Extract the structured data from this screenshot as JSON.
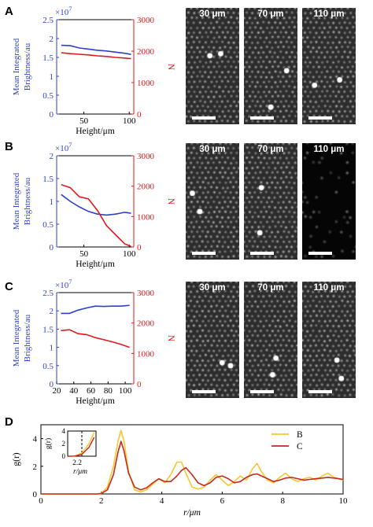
{
  "panels": [
    {
      "letter": "A"
    },
    {
      "letter": "B"
    },
    {
      "letter": "C"
    },
    {
      "letter": "D"
    }
  ],
  "colors": {
    "brightness": "#2f3fcb",
    "count": "#e0191f",
    "curve_B": "#f6c72e",
    "curve_C": "#c52a1f"
  },
  "micrographs": {
    "labels": [
      "30 μm",
      "70 μm",
      "110 μm"
    ],
    "rows": [
      {
        "panel": "A",
        "dim": [
          false,
          false,
          false
        ]
      },
      {
        "panel": "B",
        "dim": [
          false,
          false,
          true
        ]
      },
      {
        "panel": "C",
        "dim": [
          false,
          false,
          false
        ]
      }
    ]
  },
  "chart_data": [
    {
      "panel": "A",
      "type": "line",
      "xlabel": "Height/μm",
      "ylabel_left": "Mean Integrated Brightness/au",
      "ylabel_right": "N",
      "left_multiplier": "×10^7",
      "xlim": [
        20,
        105
      ],
      "x_ticks": [
        50,
        100
      ],
      "left_ylim": [
        0,
        2.5
      ],
      "left_ticks": [
        0,
        0.5,
        1,
        1.5,
        2,
        2.5
      ],
      "right_ylim": [
        0,
        3000
      ],
      "right_ticks": [
        0,
        1000,
        2000,
        3000
      ],
      "series": [
        {
          "axis": "left",
          "x": [
            25,
            35,
            45,
            55,
            65,
            75,
            85,
            95,
            102
          ],
          "y": [
            1.82,
            1.81,
            1.75,
            1.72,
            1.69,
            1.67,
            1.64,
            1.61,
            1.58
          ]
        },
        {
          "axis": "right",
          "x": [
            25,
            35,
            45,
            55,
            65,
            75,
            85,
            95,
            102
          ],
          "y": [
            1950,
            1920,
            1900,
            1880,
            1850,
            1830,
            1800,
            1780,
            1760
          ]
        }
      ]
    },
    {
      "panel": "B",
      "type": "line",
      "xlabel": "Height/μm",
      "ylabel_left": "Mean Integrated Brightness/au",
      "ylabel_right": "N",
      "left_multiplier": "×10^7",
      "xlim": [
        20,
        105
      ],
      "x_ticks": [
        50,
        100
      ],
      "left_ylim": [
        0,
        2
      ],
      "left_ticks": [
        0,
        0.5,
        1,
        1.5,
        2
      ],
      "right_ylim": [
        0,
        3000
      ],
      "right_ticks": [
        0,
        1000,
        2000,
        3000
      ],
      "series": [
        {
          "axis": "left",
          "x": [
            25,
            35,
            45,
            55,
            65,
            75,
            85,
            95,
            102
          ],
          "y": [
            1.15,
            1.0,
            0.88,
            0.78,
            0.72,
            0.7,
            0.72,
            0.76,
            0.74
          ]
        },
        {
          "axis": "right",
          "x": [
            25,
            35,
            45,
            55,
            65,
            75,
            85,
            95,
            102
          ],
          "y": [
            2050,
            1950,
            1650,
            1580,
            1200,
            700,
            400,
            100,
            20
          ]
        }
      ]
    },
    {
      "panel": "C",
      "type": "line",
      "xlabel": "Height/μm",
      "ylabel_left": "Mean Integrated Brightness/au",
      "ylabel_right": "N",
      "left_multiplier": "×10^7",
      "xlim": [
        20,
        110
      ],
      "x_ticks": [
        20,
        40,
        60,
        80,
        100
      ],
      "left_ylim": [
        0,
        2.5
      ],
      "left_ticks": [
        0,
        0.5,
        1,
        1.5,
        2,
        2.5
      ],
      "right_ylim": [
        0,
        3000
      ],
      "right_ticks": [
        0,
        1000,
        2000,
        3000
      ],
      "series": [
        {
          "axis": "left",
          "x": [
            25,
            35,
            45,
            55,
            65,
            75,
            85,
            95,
            105
          ],
          "y": [
            1.93,
            1.93,
            2.02,
            2.08,
            2.13,
            2.12,
            2.13,
            2.13,
            2.15
          ]
        },
        {
          "axis": "right",
          "x": [
            25,
            35,
            45,
            55,
            65,
            75,
            85,
            95,
            105
          ],
          "y": [
            1750,
            1780,
            1650,
            1620,
            1520,
            1450,
            1380,
            1300,
            1200
          ]
        }
      ]
    },
    {
      "panel": "D",
      "type": "line",
      "xlabel": "r/μm",
      "ylabel": "g(r)",
      "xlim": [
        0,
        10
      ],
      "x_ticks": [
        0,
        2,
        4,
        6,
        8,
        10
      ],
      "ylim": [
        0,
        5
      ],
      "y_ticks": [
        0,
        2,
        4
      ],
      "legend": "top-right",
      "series": [
        {
          "name": "B",
          "x": [
            0,
            1.85,
            2.0,
            2.2,
            2.4,
            2.55,
            2.65,
            2.75,
            2.9,
            3.1,
            3.3,
            3.5,
            3.7,
            3.9,
            4.1,
            4.3,
            4.5,
            4.65,
            4.8,
            5.0,
            5.2,
            5.4,
            5.6,
            5.8,
            6.0,
            6.2,
            6.4,
            6.6,
            6.8,
            7.0,
            7.15,
            7.3,
            7.5,
            7.7,
            7.9,
            8.1,
            8.3,
            8.5,
            8.7,
            8.9,
            9.1,
            9.3,
            9.5,
            9.7,
            9.85,
            10.0
          ],
          "y": [
            0,
            0,
            0.05,
            0.5,
            2.0,
            3.8,
            4.6,
            3.8,
            1.6,
            0.3,
            0.15,
            0.3,
            0.7,
            1.1,
            0.8,
            1.4,
            2.3,
            2.3,
            1.5,
            0.5,
            0.35,
            0.5,
            1.0,
            1.4,
            1.0,
            0.6,
            0.9,
            1.3,
            1.0,
            1.8,
            2.2,
            1.6,
            1.0,
            0.8,
            1.2,
            1.5,
            1.1,
            0.9,
            1.1,
            1.2,
            1.0,
            1.3,
            1.5,
            1.2,
            1.1,
            1.0
          ]
        },
        {
          "name": "C",
          "x": [
            0,
            1.85,
            2.0,
            2.2,
            2.4,
            2.55,
            2.65,
            2.75,
            2.9,
            3.1,
            3.3,
            3.5,
            3.7,
            3.9,
            4.1,
            4.3,
            4.5,
            4.65,
            4.8,
            5.0,
            5.2,
            5.4,
            5.6,
            5.8,
            6.0,
            6.2,
            6.4,
            6.6,
            6.8,
            7.0,
            7.15,
            7.3,
            7.5,
            7.7,
            7.9,
            8.1,
            8.3,
            8.5,
            8.7,
            8.9,
            9.1,
            9.3,
            9.5,
            9.7,
            9.85,
            10.0
          ],
          "y": [
            0,
            0,
            0.02,
            0.3,
            1.4,
            3.0,
            3.8,
            3.1,
            1.5,
            0.5,
            0.3,
            0.45,
            0.8,
            1.1,
            0.9,
            0.9,
            1.3,
            1.7,
            1.9,
            1.4,
            0.8,
            0.6,
            0.8,
            1.2,
            1.3,
            1.1,
            0.8,
            0.9,
            1.2,
            1.4,
            1.45,
            1.3,
            1.1,
            0.9,
            1.0,
            1.15,
            1.2,
            1.1,
            1.0,
            1.05,
            1.1,
            1.15,
            1.2,
            1.15,
            1.1,
            1.05
          ]
        }
      ],
      "inset": {
        "ylabel": "g(r)",
        "xlabel": "r/μm",
        "y_ticks": [
          0,
          2,
          4
        ],
        "x_tick_label": "2.2",
        "xlim": [
          1.8,
          2.6
        ],
        "ylim": [
          0,
          4
        ]
      }
    }
  ]
}
